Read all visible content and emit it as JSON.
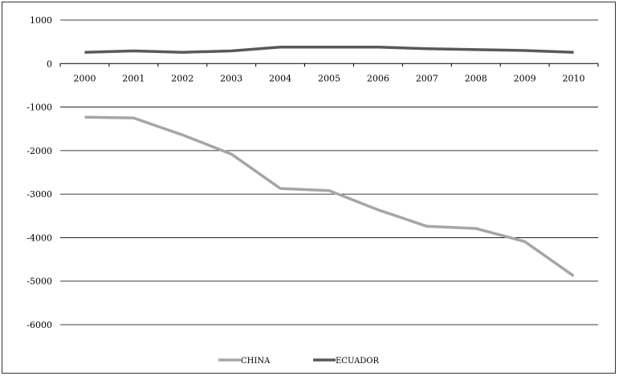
{
  "chart_data": {
    "type": "line",
    "x": [
      "2000",
      "2001",
      "2002",
      "2003",
      "2004",
      "2005",
      "2006",
      "2007",
      "2008",
      "2009",
      "2010"
    ],
    "series": [
      {
        "name": "CHINA",
        "color": "#a6a6a6",
        "values": [
          -1230,
          -1250,
          -1640,
          -2080,
          -2870,
          -2920,
          -3360,
          -3740,
          -3790,
          -4090,
          -4880
        ]
      },
      {
        "name": "ECUADOR",
        "color": "#595959",
        "values": [
          260,
          290,
          260,
          290,
          380,
          380,
          380,
          340,
          320,
          300,
          260
        ]
      }
    ],
    "yticks": [
      1000,
      0,
      -1000,
      -2000,
      -3000,
      -4000,
      -5000,
      -6000
    ],
    "ylim": [
      -6000,
      1000
    ],
    "title": "",
    "xlabel": "",
    "ylabel": "",
    "grid": "horizontal",
    "legend_position": "bottom",
    "x_labels_position": "at-zero-line"
  }
}
